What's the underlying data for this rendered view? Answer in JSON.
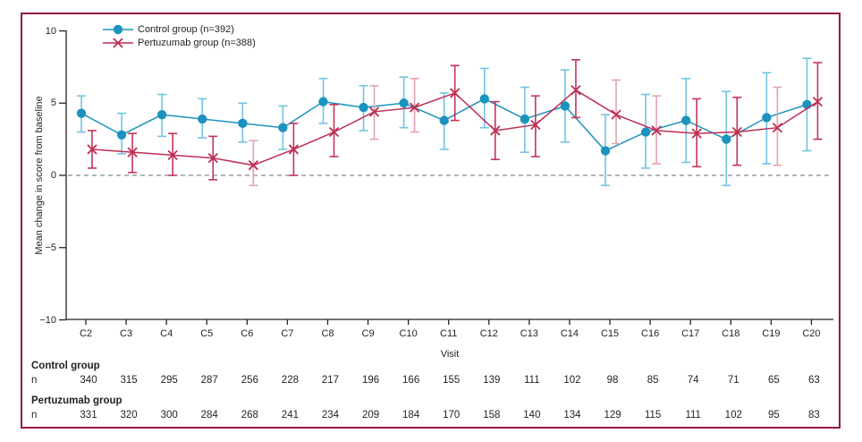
{
  "figure": {
    "border_color": "#93183f",
    "background": "#ffffff"
  },
  "legend": {
    "items": [
      {
        "label": "Control group (n=392)",
        "series": "control"
      },
      {
        "label": "Pertuzumab group (n=388)",
        "series": "pertuzumab"
      }
    ]
  },
  "axes": {
    "ylabel": "Mean change in score from baseline",
    "xlabel": "Visit",
    "ytick_labels": [
      "10",
      "5",
      "0",
      "−5",
      "−10"
    ],
    "yticks": [
      10,
      5,
      0,
      -5,
      -10
    ]
  },
  "table": {
    "rows": [
      {
        "header": "Control group",
        "label": "n",
        "values": [
          340,
          315,
          295,
          287,
          256,
          228,
          217,
          196,
          166,
          155,
          139,
          111,
          102,
          98,
          85,
          74,
          71,
          65,
          63
        ]
      },
      {
        "header": "Pertuzumab group",
        "label": "n",
        "values": [
          331,
          320,
          300,
          284,
          268,
          241,
          234,
          209,
          184,
          170,
          158,
          140,
          134,
          129,
          115,
          111,
          102,
          95,
          83
        ]
      }
    ]
  },
  "chart_data": {
    "type": "line",
    "title": "",
    "xlabel": "Visit",
    "ylabel": "Mean change in score from baseline",
    "ylim": [
      -10,
      10
    ],
    "grid": false,
    "zero_line": true,
    "legend_position": "top-left",
    "categories": [
      "C2",
      "C3",
      "C4",
      "C5",
      "C6",
      "C7",
      "C8",
      "C9",
      "C10",
      "C11",
      "C12",
      "C13",
      "C14",
      "C15",
      "C16",
      "C17",
      "C18",
      "C19",
      "C20"
    ],
    "series": [
      {
        "name": "Control group (n=392)",
        "marker": "circle",
        "color": "#1c93be",
        "errorbar_color": "#72c3e2",
        "values": [
          4.3,
          2.8,
          4.2,
          3.9,
          3.6,
          3.3,
          5.1,
          4.7,
          5.0,
          3.8,
          5.3,
          3.9,
          4.8,
          1.7,
          3.0,
          3.8,
          2.5,
          4.0,
          4.9
        ],
        "ci_low": [
          3.0,
          1.5,
          2.7,
          2.6,
          2.3,
          1.8,
          3.6,
          3.1,
          3.3,
          1.8,
          3.3,
          1.6,
          2.3,
          -0.7,
          0.5,
          0.9,
          -0.7,
          0.8,
          1.7
        ],
        "ci_high": [
          5.5,
          4.3,
          5.6,
          5.3,
          5.0,
          4.8,
          6.7,
          6.2,
          6.8,
          5.7,
          7.4,
          6.1,
          7.3,
          4.2,
          5.6,
          6.7,
          5.8,
          7.1,
          8.1
        ],
        "light_indices": []
      },
      {
        "name": "Pertuzumab group (n=388)",
        "marker": "x",
        "color": "#be2d53",
        "errorbar_color": "#c2345b",
        "errorbar_color_light": "#e2a3b5",
        "values": [
          1.8,
          1.6,
          1.4,
          1.2,
          0.7,
          1.8,
          3.0,
          4.4,
          4.7,
          5.7,
          3.1,
          3.5,
          5.9,
          4.2,
          3.1,
          2.9,
          3.0,
          3.3,
          5.1
        ],
        "ci_low": [
          0.5,
          0.2,
          0.0,
          -0.3,
          -0.7,
          0.0,
          1.3,
          2.5,
          3.0,
          3.8,
          1.1,
          1.3,
          4.0,
          2.2,
          0.8,
          0.6,
          0.7,
          0.7,
          2.5
        ],
        "ci_high": [
          3.1,
          2.9,
          2.9,
          2.7,
          2.4,
          3.6,
          4.9,
          6.2,
          6.7,
          7.6,
          5.1,
          5.5,
          8.0,
          6.6,
          5.5,
          5.3,
          5.4,
          6.1,
          7.8
        ],
        "light_indices": [
          4,
          7,
          8,
          13,
          14,
          17
        ]
      }
    ]
  }
}
